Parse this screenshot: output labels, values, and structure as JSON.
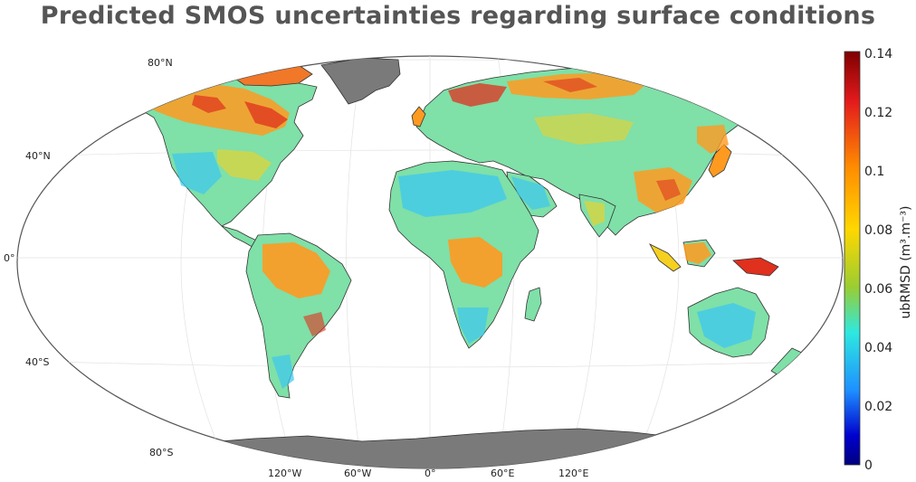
{
  "title": "Predicted SMOS uncertainties regarding surface conditions",
  "map": {
    "lat_labels": [
      "80°N",
      "40°N",
      "0°",
      "40°S",
      "80°S"
    ],
    "lon_labels": [
      "120°W",
      "60°W",
      "0°",
      "60°E",
      "120°E"
    ]
  },
  "colorbar": {
    "label": "ubRMSD (m³.m⁻³)",
    "ticks": [
      "0.14",
      "0.12",
      "0.1",
      "0.08",
      "0.06",
      "0.04",
      "0.02",
      "0"
    ],
    "colors": [
      "#7f0000",
      "#e31a1c",
      "#ff8c00",
      "#ffd700",
      "#9acd32",
      "#2ee8e0",
      "#1e90ff",
      "#0000cd",
      "#00007f"
    ]
  },
  "palette": {
    "land_base": "#7fe0a8",
    "hot": "#ff9a20",
    "very_hot": "#e0301e",
    "warm": "#f5d020",
    "cool": "#3cc8f0",
    "ice": "#7a7a7a",
    "coast": "#333333"
  }
}
